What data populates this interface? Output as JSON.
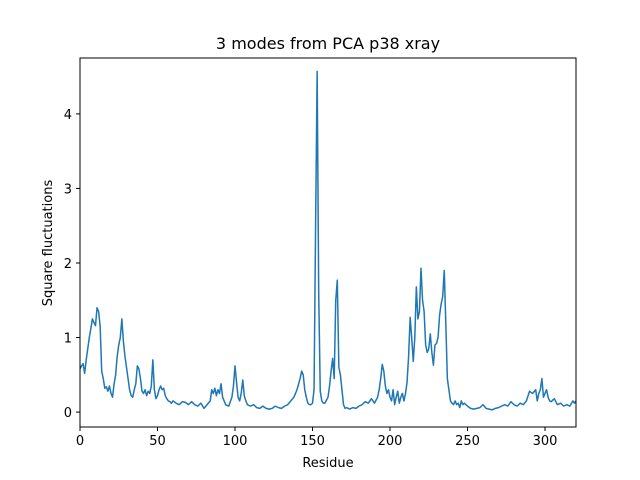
{
  "chart_data": {
    "type": "line",
    "title": "3 modes from PCA p38 xray",
    "xlabel": "Residue",
    "ylabel": "Square fluctuations",
    "xlim": [
      0,
      320
    ],
    "ylim": [
      -0.2,
      4.75
    ],
    "xticks": [
      0,
      50,
      100,
      150,
      200,
      250,
      300
    ],
    "yticks": [
      0,
      1,
      2,
      3,
      4
    ],
    "grid": false,
    "series": [
      {
        "color": "#1f77b4",
        "points": [
          [
            0,
            0.58
          ],
          [
            1,
            0.62
          ],
          [
            2,
            0.65
          ],
          [
            3,
            0.52
          ],
          [
            4,
            0.7
          ],
          [
            5,
            0.85
          ],
          [
            6,
            1.0
          ],
          [
            7,
            1.12
          ],
          [
            8,
            1.25
          ],
          [
            9,
            1.2
          ],
          [
            10,
            1.16
          ],
          [
            11,
            1.4
          ],
          [
            12,
            1.35
          ],
          [
            13,
            1.15
          ],
          [
            14,
            0.55
          ],
          [
            15,
            0.45
          ],
          [
            16,
            0.32
          ],
          [
            17,
            0.34
          ],
          [
            18,
            0.28
          ],
          [
            19,
            0.35
          ],
          [
            20,
            0.25
          ],
          [
            21,
            0.2
          ],
          [
            22,
            0.38
          ],
          [
            23,
            0.5
          ],
          [
            24,
            0.75
          ],
          [
            25,
            0.9
          ],
          [
            26,
            1.0
          ],
          [
            27,
            1.25
          ],
          [
            28,
            0.95
          ],
          [
            29,
            0.75
          ],
          [
            30,
            0.6
          ],
          [
            31,
            0.45
          ],
          [
            32,
            0.3
          ],
          [
            33,
            0.22
          ],
          [
            34,
            0.2
          ],
          [
            35,
            0.3
          ],
          [
            36,
            0.38
          ],
          [
            37,
            0.62
          ],
          [
            38,
            0.58
          ],
          [
            39,
            0.45
          ],
          [
            40,
            0.28
          ],
          [
            41,
            0.25
          ],
          [
            42,
            0.3
          ],
          [
            43,
            0.22
          ],
          [
            44,
            0.28
          ],
          [
            45,
            0.25
          ],
          [
            46,
            0.35
          ],
          [
            47,
            0.7
          ],
          [
            48,
            0.3
          ],
          [
            49,
            0.18
          ],
          [
            50,
            0.22
          ],
          [
            51,
            0.3
          ],
          [
            52,
            0.35
          ],
          [
            53,
            0.3
          ],
          [
            54,
            0.32
          ],
          [
            55,
            0.22
          ],
          [
            56,
            0.18
          ],
          [
            57,
            0.15
          ],
          [
            58,
            0.14
          ],
          [
            59,
            0.12
          ],
          [
            60,
            0.15
          ],
          [
            62,
            0.12
          ],
          [
            64,
            0.1
          ],
          [
            66,
            0.14
          ],
          [
            68,
            0.13
          ],
          [
            70,
            0.1
          ],
          [
            72,
            0.14
          ],
          [
            74,
            0.1
          ],
          [
            76,
            0.08
          ],
          [
            78,
            0.12
          ],
          [
            80,
            0.05
          ],
          [
            82,
            0.1
          ],
          [
            84,
            0.15
          ],
          [
            85,
            0.3
          ],
          [
            86,
            0.25
          ],
          [
            87,
            0.32
          ],
          [
            88,
            0.22
          ],
          [
            89,
            0.3
          ],
          [
            90,
            0.25
          ],
          [
            91,
            0.38
          ],
          [
            92,
            0.2
          ],
          [
            93,
            0.15
          ],
          [
            94,
            0.1
          ],
          [
            96,
            0.08
          ],
          [
            98,
            0.2
          ],
          [
            99,
            0.35
          ],
          [
            100,
            0.62
          ],
          [
            101,
            0.4
          ],
          [
            102,
            0.2
          ],
          [
            103,
            0.15
          ],
          [
            104,
            0.25
          ],
          [
            105,
            0.43
          ],
          [
            106,
            0.22
          ],
          [
            107,
            0.15
          ],
          [
            108,
            0.1
          ],
          [
            110,
            0.08
          ],
          [
            112,
            0.1
          ],
          [
            114,
            0.06
          ],
          [
            116,
            0.05
          ],
          [
            118,
            0.08
          ],
          [
            120,
            0.05
          ],
          [
            122,
            0.04
          ],
          [
            124,
            0.05
          ],
          [
            126,
            0.08
          ],
          [
            128,
            0.06
          ],
          [
            130,
            0.05
          ],
          [
            132,
            0.08
          ],
          [
            134,
            0.1
          ],
          [
            136,
            0.15
          ],
          [
            138,
            0.2
          ],
          [
            140,
            0.3
          ],
          [
            142,
            0.45
          ],
          [
            143,
            0.55
          ],
          [
            144,
            0.5
          ],
          [
            145,
            0.3
          ],
          [
            146,
            0.2
          ],
          [
            147,
            0.12
          ],
          [
            148,
            0.1
          ],
          [
            149,
            0.1
          ],
          [
            150,
            0.12
          ],
          [
            151,
            0.3
          ],
          [
            152,
            2.5
          ],
          [
            153,
            4.57
          ],
          [
            154,
            1.6
          ],
          [
            155,
            0.28
          ],
          [
            156,
            0.15
          ],
          [
            157,
            0.12
          ],
          [
            158,
            0.12
          ],
          [
            160,
            0.2
          ],
          [
            161,
            0.35
          ],
          [
            162,
            0.55
          ],
          [
            163,
            0.72
          ],
          [
            164,
            0.45
          ],
          [
            165,
            1.5
          ],
          [
            166,
            1.77
          ],
          [
            167,
            0.6
          ],
          [
            168,
            0.5
          ],
          [
            169,
            0.3
          ],
          [
            170,
            0.1
          ],
          [
            171,
            0.05
          ],
          [
            172,
            0.06
          ],
          [
            174,
            0.04
          ],
          [
            176,
            0.06
          ],
          [
            178,
            0.05
          ],
          [
            180,
            0.08
          ],
          [
            182,
            0.1
          ],
          [
            184,
            0.14
          ],
          [
            186,
            0.12
          ],
          [
            188,
            0.18
          ],
          [
            190,
            0.12
          ],
          [
            192,
            0.2
          ],
          [
            193,
            0.3
          ],
          [
            194,
            0.45
          ],
          [
            195,
            0.64
          ],
          [
            196,
            0.55
          ],
          [
            197,
            0.35
          ],
          [
            198,
            0.25
          ],
          [
            199,
            0.3
          ],
          [
            200,
            0.2
          ],
          [
            201,
            0.15
          ],
          [
            202,
            0.3
          ],
          [
            203,
            0.1
          ],
          [
            204,
            0.2
          ],
          [
            205,
            0.28
          ],
          [
            206,
            0.12
          ],
          [
            207,
            0.2
          ],
          [
            208,
            0.25
          ],
          [
            209,
            0.15
          ],
          [
            210,
            0.25
          ],
          [
            211,
            0.4
          ],
          [
            212,
            0.75
          ],
          [
            213,
            1.27
          ],
          [
            214,
            1.0
          ],
          [
            215,
            0.68
          ],
          [
            216,
            1.0
          ],
          [
            217,
            1.68
          ],
          [
            218,
            1.25
          ],
          [
            219,
            1.35
          ],
          [
            220,
            1.93
          ],
          [
            221,
            1.5
          ],
          [
            222,
            1.35
          ],
          [
            223,
            0.9
          ],
          [
            224,
            0.8
          ],
          [
            225,
            0.85
          ],
          [
            226,
            1.05
          ],
          [
            227,
            0.8
          ],
          [
            228,
            0.63
          ],
          [
            229,
            0.9
          ],
          [
            230,
            0.92
          ],
          [
            231,
            1.0
          ],
          [
            232,
            1.3
          ],
          [
            233,
            1.45
          ],
          [
            234,
            1.55
          ],
          [
            235,
            1.9
          ],
          [
            236,
            1.2
          ],
          [
            237,
            0.45
          ],
          [
            238,
            0.3
          ],
          [
            239,
            0.15
          ],
          [
            240,
            0.12
          ],
          [
            241,
            0.1
          ],
          [
            242,
            0.15
          ],
          [
            243,
            0.1
          ],
          [
            244,
            0.12
          ],
          [
            245,
            0.06
          ],
          [
            246,
            0.15
          ],
          [
            247,
            0.1
          ],
          [
            248,
            0.12
          ],
          [
            250,
            0.08
          ],
          [
            252,
            0.05
          ],
          [
            254,
            0.04
          ],
          [
            256,
            0.05
          ],
          [
            258,
            0.06
          ],
          [
            260,
            0.1
          ],
          [
            262,
            0.05
          ],
          [
            264,
            0.04
          ],
          [
            266,
            0.03
          ],
          [
            268,
            0.05
          ],
          [
            270,
            0.06
          ],
          [
            272,
            0.08
          ],
          [
            274,
            0.1
          ],
          [
            276,
            0.08
          ],
          [
            278,
            0.14
          ],
          [
            280,
            0.1
          ],
          [
            282,
            0.08
          ],
          [
            284,
            0.12
          ],
          [
            286,
            0.1
          ],
          [
            288,
            0.15
          ],
          [
            290,
            0.28
          ],
          [
            292,
            0.25
          ],
          [
            294,
            0.3
          ],
          [
            295,
            0.15
          ],
          [
            296,
            0.25
          ],
          [
            297,
            0.3
          ],
          [
            298,
            0.45
          ],
          [
            299,
            0.2
          ],
          [
            300,
            0.25
          ],
          [
            301,
            0.3
          ],
          [
            302,
            0.2
          ],
          [
            303,
            0.15
          ],
          [
            304,
            0.14
          ],
          [
            306,
            0.18
          ],
          [
            308,
            0.1
          ],
          [
            310,
            0.12
          ],
          [
            312,
            0.08
          ],
          [
            314,
            0.1
          ],
          [
            316,
            0.08
          ],
          [
            318,
            0.15
          ],
          [
            319,
            0.12
          ],
          [
            320,
            0.15
          ]
        ]
      }
    ]
  }
}
